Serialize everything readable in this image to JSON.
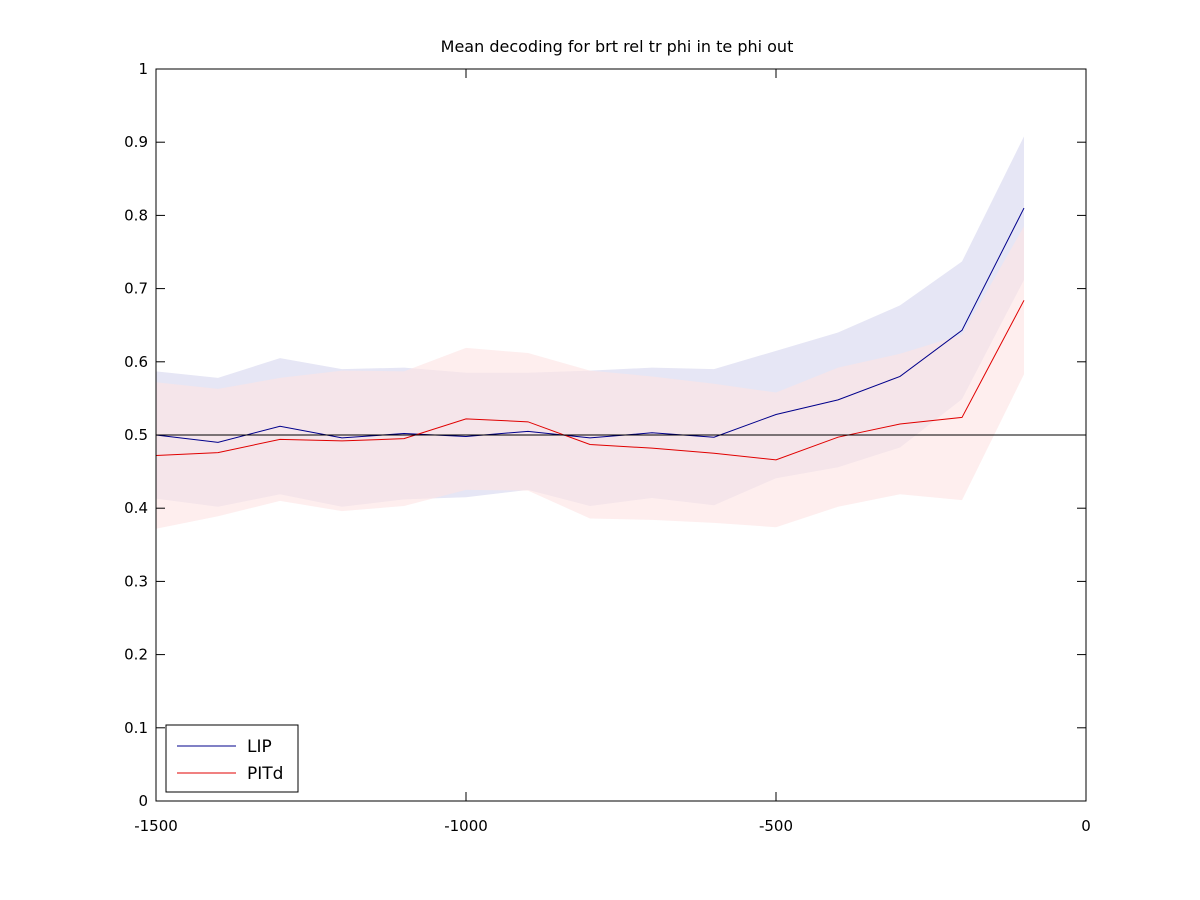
{
  "chart_data": {
    "type": "line",
    "title": "Mean decoding for brt rel tr phi in te phi out",
    "xlabel": "",
    "ylabel": "",
    "xlim": [
      -1500,
      0
    ],
    "ylim": [
      0,
      1
    ],
    "x_ticks": [
      -1500,
      -1000,
      -500,
      0
    ],
    "y_ticks": [
      0,
      0.1,
      0.2,
      0.3,
      0.4,
      0.5,
      0.6,
      0.7,
      0.8,
      0.9,
      1
    ],
    "x_tick_labels": [
      "-1500",
      "-1000",
      "-500",
      "0"
    ],
    "y_tick_labels": [
      "0",
      "0.1",
      "0.2",
      "0.3",
      "0.4",
      "0.5",
      "0.6",
      "0.7",
      "0.8",
      "0.9",
      "1"
    ],
    "grid": false,
    "legend_position": "bottom-left",
    "reference_line": 0.5,
    "x": [
      -1500,
      -1400,
      -1300,
      -1200,
      -1100,
      -1000,
      -900,
      -800,
      -700,
      -600,
      -500,
      -400,
      -300,
      -200,
      -100
    ],
    "series": [
      {
        "name": "LIP",
        "color": "#00008b",
        "band_color": "#e6e6f5",
        "values": [
          0.5,
          0.49,
          0.512,
          0.496,
          0.502,
          0.498,
          0.505,
          0.496,
          0.503,
          0.497,
          0.528,
          0.548,
          0.58,
          0.643,
          0.81
        ],
        "upper": [
          0.587,
          0.578,
          0.605,
          0.59,
          0.592,
          0.585,
          0.585,
          0.588,
          0.592,
          0.59,
          0.615,
          0.64,
          0.677,
          0.737,
          0.908
        ],
        "lower": [
          0.413,
          0.402,
          0.419,
          0.402,
          0.412,
          0.415,
          0.425,
          0.403,
          0.414,
          0.404,
          0.441,
          0.456,
          0.483,
          0.549,
          0.712
        ]
      },
      {
        "name": "PITd",
        "color": "#e00000",
        "band_color": "#fde3e3",
        "values": [
          0.472,
          0.476,
          0.494,
          0.492,
          0.495,
          0.522,
          0.518,
          0.487,
          0.482,
          0.475,
          0.466,
          0.497,
          0.515,
          0.524,
          0.684
        ],
        "upper": [
          0.572,
          0.563,
          0.578,
          0.588,
          0.587,
          0.619,
          0.612,
          0.588,
          0.58,
          0.57,
          0.558,
          0.592,
          0.611,
          0.637,
          0.785
        ],
        "lower": [
          0.372,
          0.389,
          0.41,
          0.396,
          0.403,
          0.425,
          0.424,
          0.386,
          0.384,
          0.38,
          0.374,
          0.402,
          0.419,
          0.411,
          0.583
        ]
      }
    ]
  }
}
